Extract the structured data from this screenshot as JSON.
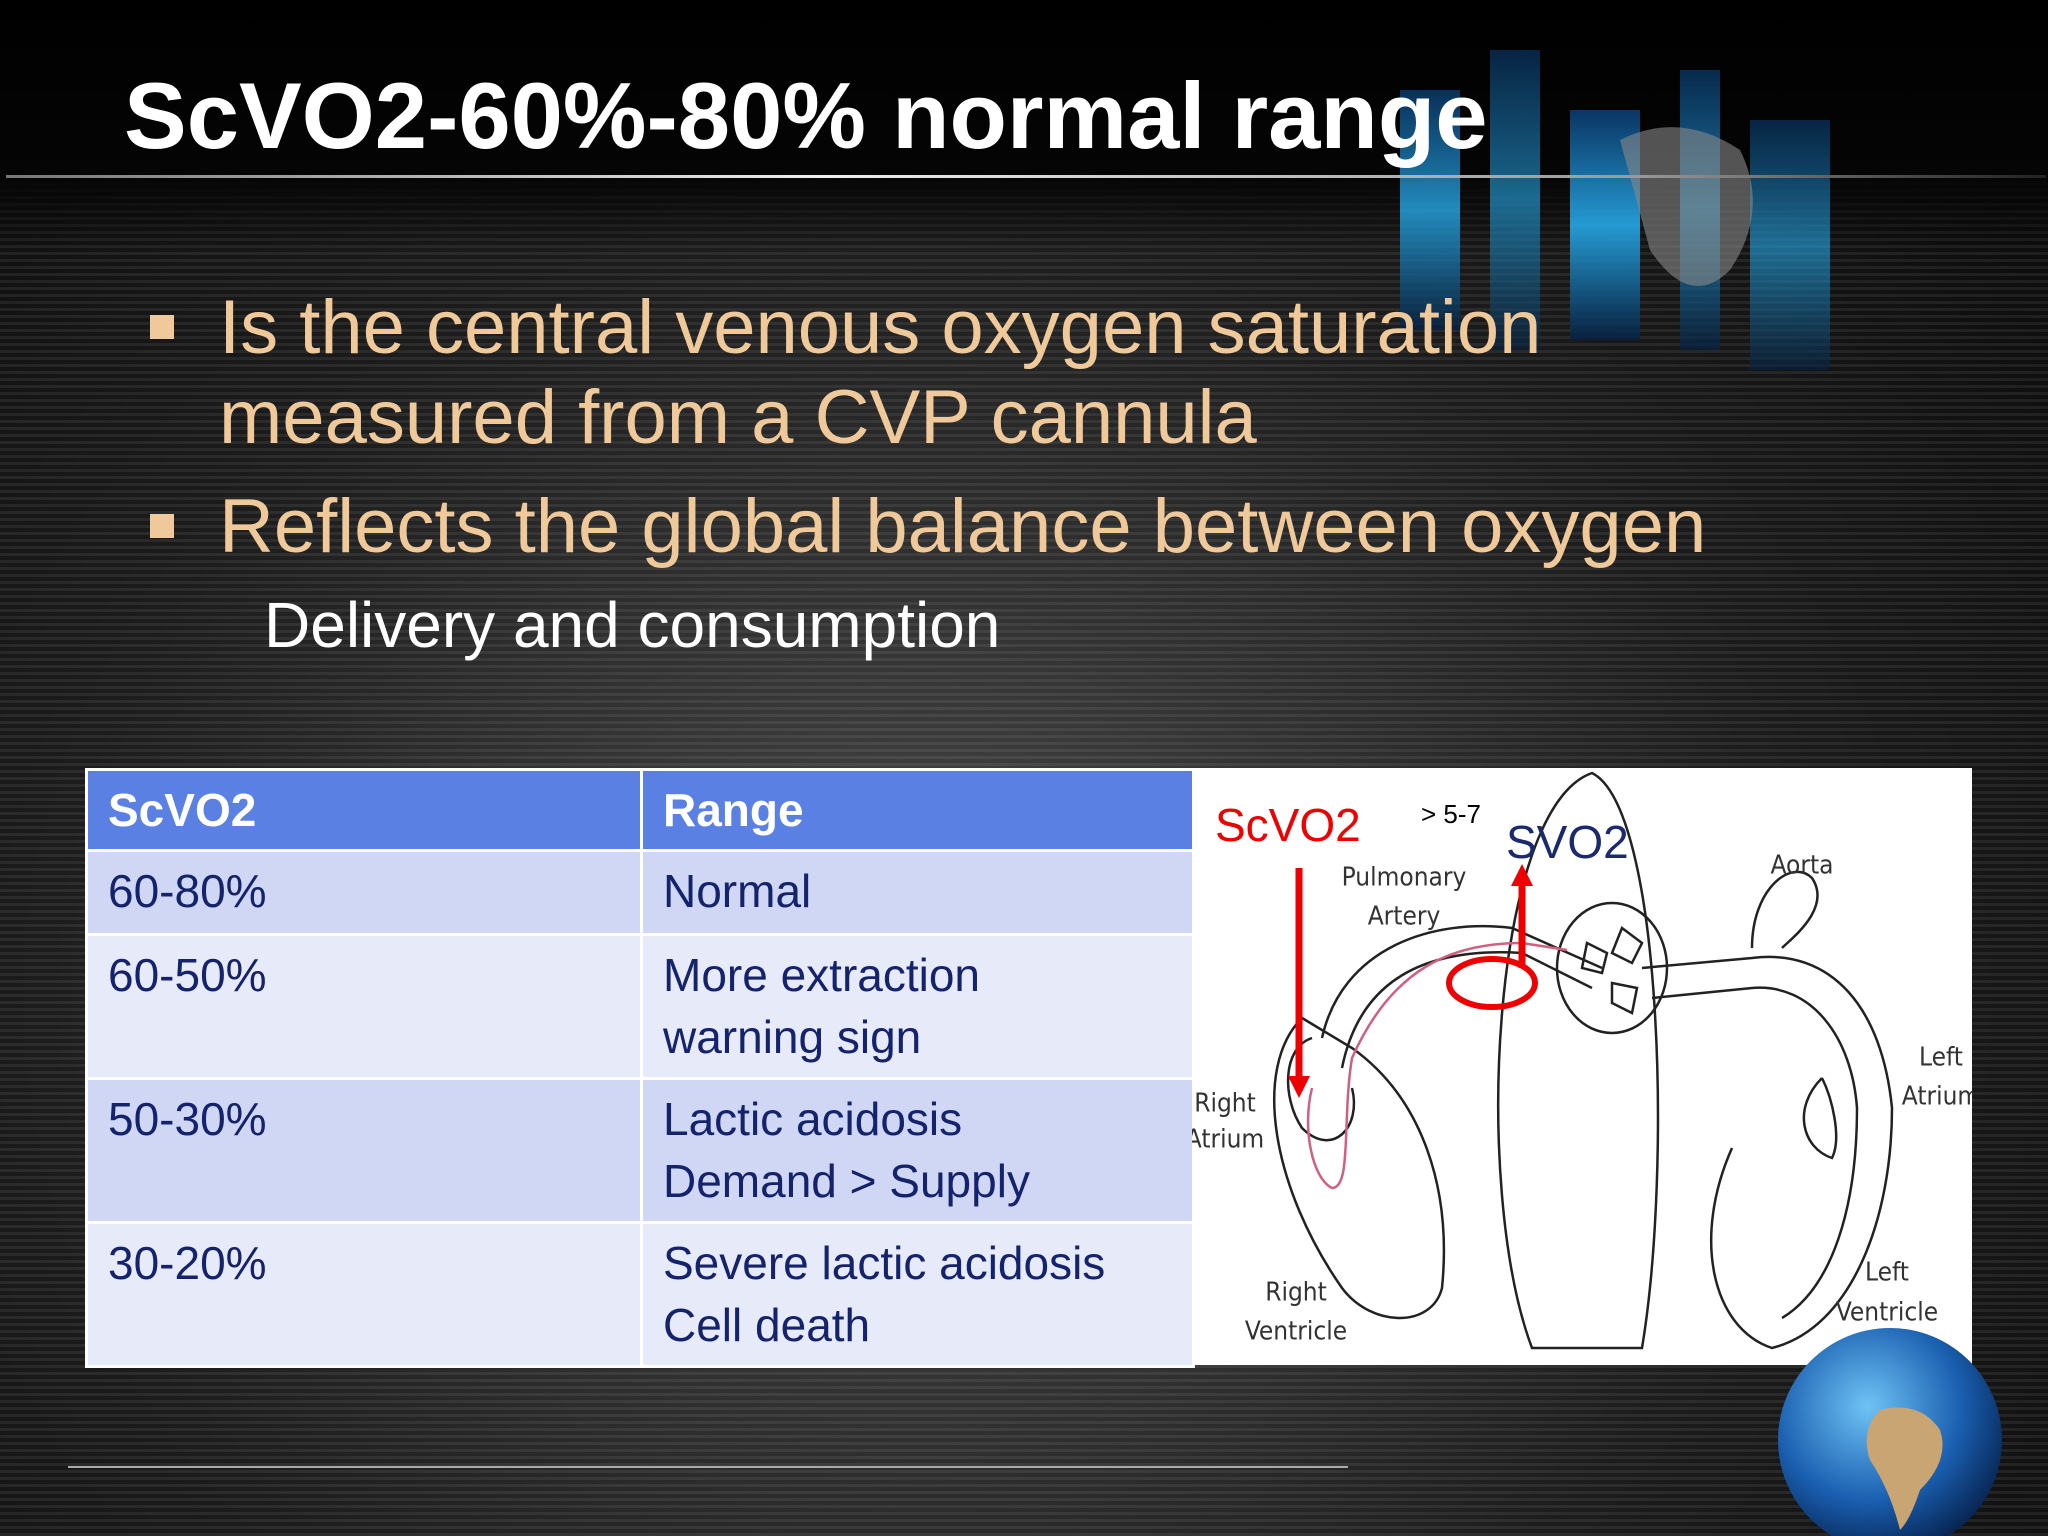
{
  "title": "ScVO2-60%-80% normal range",
  "bullets": [
    "Is the central venous oxygen saturation measured from a CVP cannula",
    "Reflects the global balance between oxygen"
  ],
  "sub_line": "Delivery and consumption",
  "table": {
    "header": [
      "ScVO2",
      "Range"
    ],
    "rows": [
      [
        [
          "60-80%"
        ],
        [
          "Normal"
        ]
      ],
      [
        [
          "60-50%"
        ],
        [
          "More extraction",
          "warning sign"
        ]
      ],
      [
        [
          "50-30%"
        ],
        [
          "Lactic acidosis",
          "Demand > Supply"
        ]
      ],
      [
        [
          "30-20%"
        ],
        [
          "Severe lactic acidosis",
          "Cell death"
        ]
      ]
    ]
  },
  "diagram": {
    "scvo2": "ScVO2",
    "gap": "> 5-7",
    "svo2": "SVO2",
    "labels": [
      [
        "Pulmonary",
        "Artery"
      ],
      [
        "Aorta"
      ],
      [
        "Left",
        "Atrium"
      ],
      [
        "Right",
        "Atrium"
      ],
      [
        "Right",
        "Ventricle"
      ],
      [
        "Left",
        "Ventricle"
      ]
    ]
  }
}
